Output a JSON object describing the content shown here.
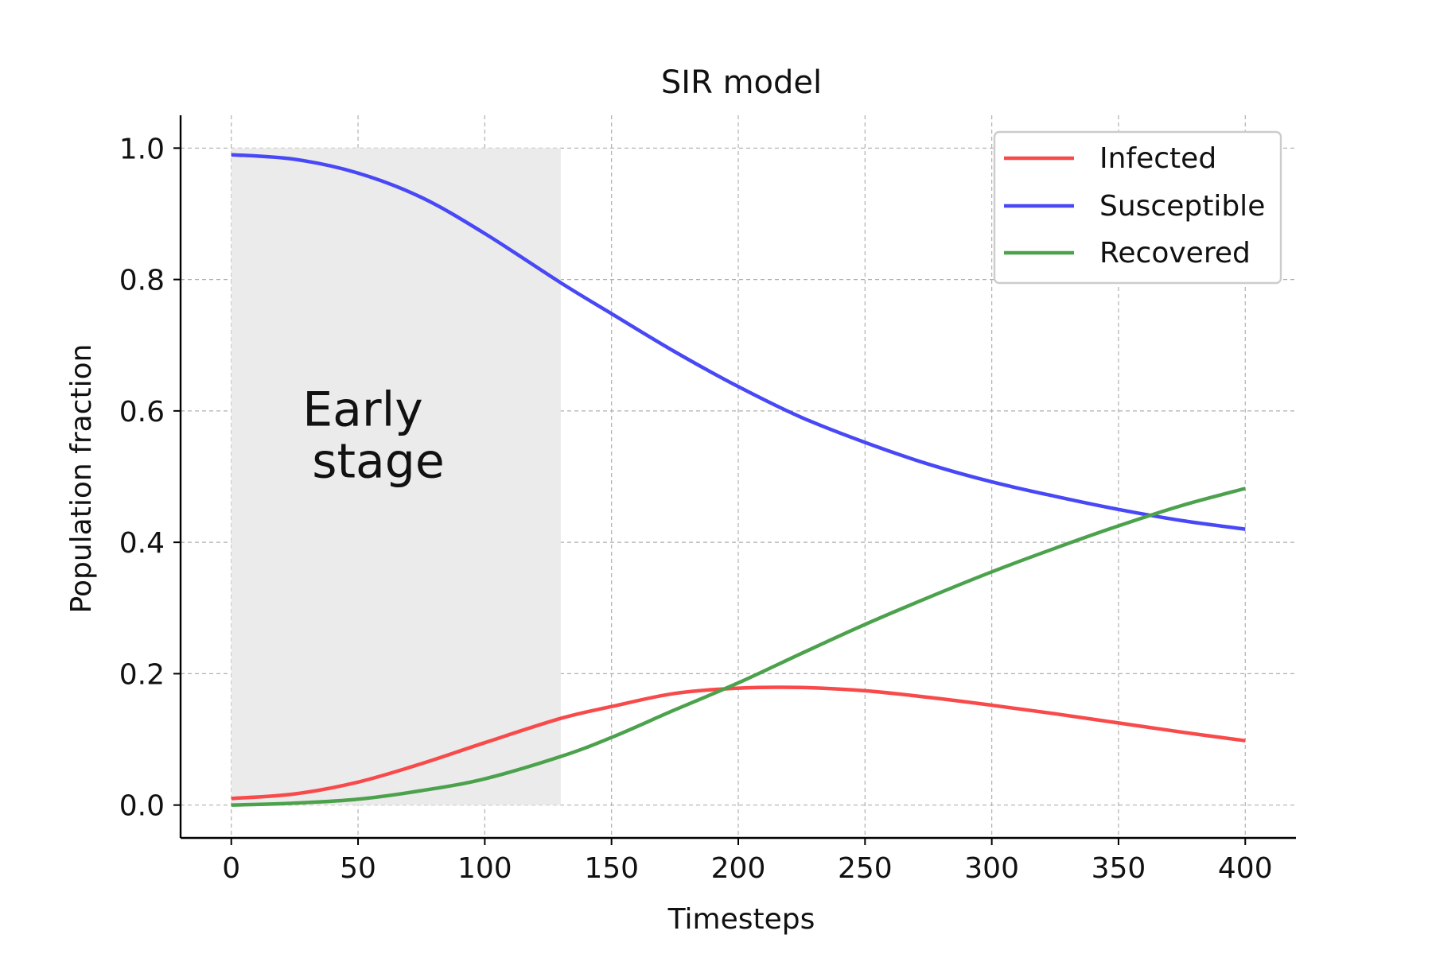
{
  "chart_data": {
    "type": "line",
    "title": "SIR model",
    "xlabel": "Timesteps",
    "ylabel": "Population fraction",
    "xlim": [
      -20,
      420
    ],
    "ylim": [
      -0.05,
      1.05
    ],
    "xticks": [
      0,
      50,
      100,
      150,
      200,
      250,
      300,
      350,
      400
    ],
    "xtick_labels": [
      "0",
      "50",
      "100",
      "150",
      "200",
      "250",
      "300",
      "350",
      "400"
    ],
    "yticks": [
      0.0,
      0.2,
      0.4,
      0.6,
      0.8,
      1.0
    ],
    "ytick_labels": [
      "0.0",
      "0.2",
      "0.4",
      "0.6",
      "0.8",
      "1.0"
    ],
    "grid": true,
    "legend_position": "top-right",
    "x": [
      0,
      25,
      50,
      75,
      100,
      130,
      150,
      175,
      200,
      225,
      250,
      275,
      300,
      325,
      350,
      375,
      400
    ],
    "series": [
      {
        "name": "Infected",
        "color": "#f84a4a",
        "values": [
          0.01,
          0.017,
          0.035,
          0.063,
          0.095,
          0.132,
          0.15,
          0.17,
          0.178,
          0.179,
          0.174,
          0.164,
          0.152,
          0.139,
          0.125,
          0.111,
          0.098
        ]
      },
      {
        "name": "Susceptible",
        "color": "#4848f6",
        "values": [
          0.99,
          0.983,
          0.962,
          0.925,
          0.87,
          0.795,
          0.748,
          0.69,
          0.637,
          0.59,
          0.552,
          0.519,
          0.492,
          0.47,
          0.45,
          0.433,
          0.42
        ]
      },
      {
        "name": "Recovered",
        "color": "#4ca24c",
        "values": [
          0.0,
          0.003,
          0.009,
          0.022,
          0.04,
          0.074,
          0.103,
          0.145,
          0.186,
          0.231,
          0.275,
          0.316,
          0.355,
          0.391,
          0.425,
          0.456,
          0.482
        ]
      }
    ],
    "shaded_region": {
      "x_start": 0,
      "x_end": 130,
      "y_start": 0,
      "y_end": 1.0,
      "color": "#ebebeb"
    },
    "annotation": {
      "lines": [
        "Early",
        "stage"
      ],
      "x": 58,
      "y": 0.535
    }
  }
}
